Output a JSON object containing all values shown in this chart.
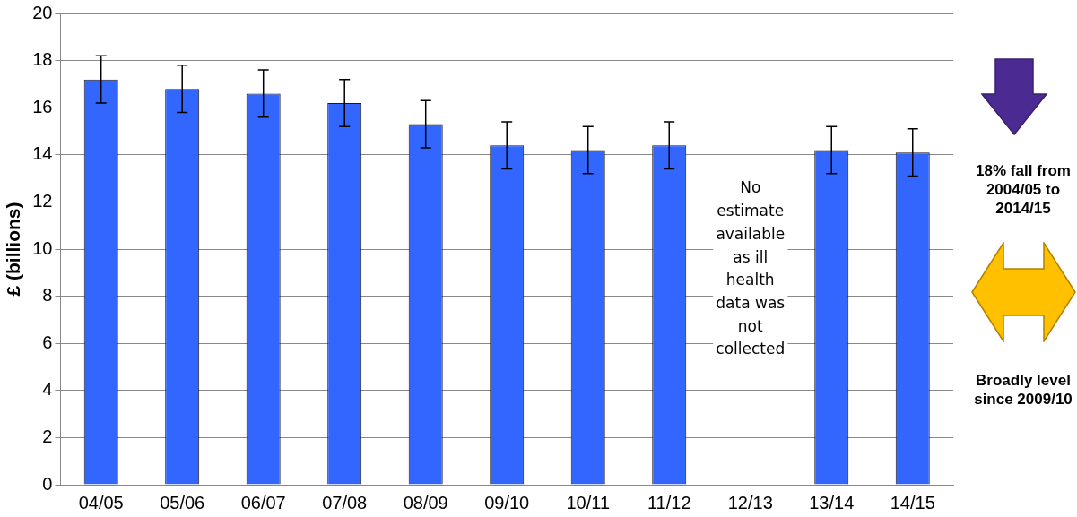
{
  "chart_data": {
    "type": "bar",
    "ylabel": "£ (billions)",
    "categories": [
      "04/05",
      "05/06",
      "06/07",
      "07/08",
      "08/09",
      "09/10",
      "10/11",
      "11/12",
      "12/13",
      "13/14",
      "14/15"
    ],
    "values": [
      17.2,
      16.8,
      16.6,
      16.2,
      15.3,
      14.4,
      14.2,
      14.4,
      null,
      14.2,
      14.1
    ],
    "errors": [
      1.0,
      1.0,
      1.0,
      1.0,
      1.0,
      1.0,
      1.0,
      1.0,
      null,
      1.0,
      1.0
    ],
    "color": "#3366ff",
    "ylim": [
      0,
      20
    ],
    "yticks": [
      0,
      2,
      4,
      6,
      8,
      10,
      12,
      14,
      16,
      18,
      20
    ],
    "grid": "y",
    "legend": false,
    "annotations": [
      "No estimate available as ill health data was not collected",
      "18% fall from 2004/05 to 2014/15",
      "Broadly level since 2009/10"
    ]
  }
}
